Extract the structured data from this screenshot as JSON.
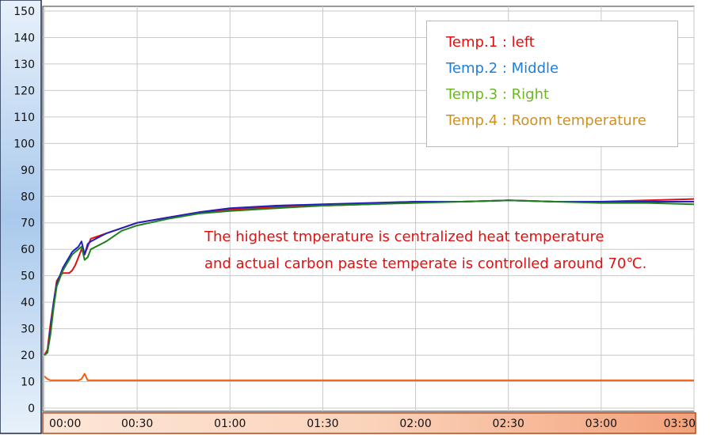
{
  "chart_data": {
    "type": "line",
    "title": "",
    "xlabel": "",
    "ylabel": "",
    "ylim": [
      0,
      150
    ],
    "xlim": [
      "00:00",
      "03:30"
    ],
    "grid": true,
    "legend_position": "top-right",
    "yticks": [
      "150",
      "140",
      "130",
      "120",
      "110",
      "100",
      "90",
      "80",
      "70",
      "60",
      "50",
      "40",
      "30",
      "20",
      "10",
      "0"
    ],
    "xticks": [
      "00:00",
      "00:30",
      "01:00",
      "01:30",
      "02:00",
      "02:30",
      "03:00",
      "03:30"
    ],
    "x": [
      "00:00",
      "00:01",
      "00:02",
      "00:03",
      "00:04",
      "00:05",
      "00:06",
      "00:07",
      "00:08",
      "00:09",
      "00:10",
      "00:11",
      "00:12",
      "00:13",
      "00:14",
      "00:15",
      "00:20",
      "00:25",
      "00:30",
      "00:40",
      "00:50",
      "01:00",
      "01:15",
      "01:30",
      "01:45",
      "02:00",
      "02:15",
      "02:30",
      "02:45",
      "03:00",
      "03:15",
      "03:30"
    ],
    "series": [
      {
        "name": "Temp.1 : left",
        "color": "#e01010",
        "values": [
          20,
          22,
          32,
          40,
          48,
          50,
          51,
          51,
          51,
          52,
          54,
          57,
          60,
          58,
          61,
          64,
          66,
          68,
          70,
          72,
          74,
          75,
          76,
          76.5,
          77,
          78,
          78,
          78.5,
          78,
          78,
          78.5,
          79
        ]
      },
      {
        "name": "Temp.2 : Middle",
        "color": "#2020c0",
        "values": [
          20,
          21,
          30,
          40,
          47,
          50,
          53,
          55,
          57,
          59,
          60,
          61,
          63,
          58,
          62,
          63,
          66,
          68,
          70,
          72,
          74,
          75.5,
          76.5,
          77,
          77.5,
          78,
          78,
          78.5,
          78,
          78,
          78,
          78
        ]
      },
      {
        "name": "Temp.3 : Right",
        "color": "#208020",
        "values": [
          20,
          21,
          28,
          38,
          46,
          49,
          52,
          54,
          56,
          58,
          59,
          60,
          61,
          56,
          57,
          60,
          63,
          67,
          69,
          71.5,
          73.5,
          74.5,
          75.5,
          76.5,
          77,
          77.5,
          78,
          78.5,
          78,
          77.5,
          77.5,
          77
        ]
      },
      {
        "name": "Temp.4 : Room temperature",
        "color": "#ee6010",
        "values": [
          12,
          11,
          10.5,
          10.5,
          10.5,
          10.5,
          10.5,
          10.5,
          10.5,
          10.5,
          10.5,
          10.5,
          11,
          13,
          10.5,
          10.5,
          10.5,
          10.5,
          10.5,
          10.5,
          10.5,
          10.5,
          10.5,
          10.5,
          10.5,
          10.5,
          10.5,
          10.5,
          10.5,
          10.5,
          10.5,
          10.5
        ]
      }
    ],
    "annotations": [
      "The highest tmperature is centralized heat temperature",
      "and actual carbon paste temperate is controlled around 70℃."
    ]
  },
  "legend": [
    {
      "label": "Temp.1 : left",
      "color": "#e01010"
    },
    {
      "label": "Temp.2 : Middle",
      "color": "#1f7fd6"
    },
    {
      "label": "Temp.3 : Right",
      "color": "#6cb820"
    },
    {
      "label": "Temp.4 : Room temperature",
      "color": "#d09020"
    }
  ]
}
